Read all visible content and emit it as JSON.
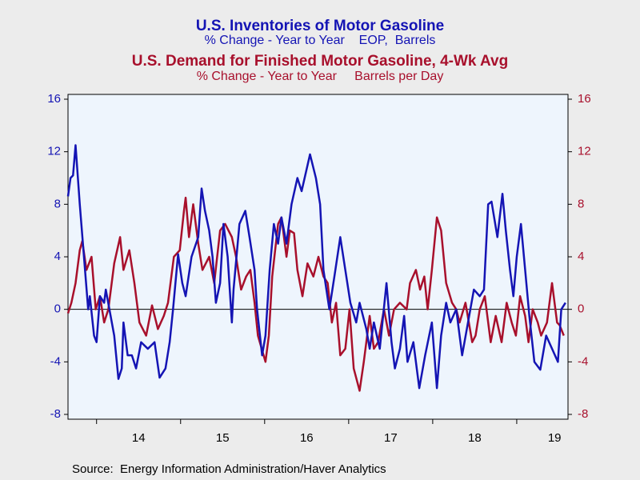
{
  "chart_data": {
    "type": "line",
    "source": "Source:  Energy Information Administration/Haver Analytics",
    "xlim": [
      2013.66,
      2019.61
    ],
    "xticks": [
      {
        "value": 2014.5,
        "label": "14"
      },
      {
        "value": 2015.5,
        "label": "15"
      },
      {
        "value": 2016.5,
        "label": "16"
      },
      {
        "value": 2017.5,
        "label": "17"
      },
      {
        "value": 2018.5,
        "label": "18"
      },
      {
        "value": 2019.45,
        "label": "19"
      }
    ],
    "ylim": [
      -8,
      16
    ],
    "yticks": [
      -8,
      -4,
      0,
      4,
      8,
      12,
      16
    ],
    "y2lim": [
      -8,
      16
    ],
    "y2ticks": [
      -8,
      -4,
      0,
      4,
      8,
      12,
      16
    ],
    "series": [
      {
        "name": "U.S. Inventories of Motor Gasoline",
        "subtitle": "% Change - Year to Year    EOP,  Barrels",
        "color": "#1414b4",
        "x": [
          2013.66,
          2013.69,
          2013.72,
          2013.75,
          2013.8,
          2013.85,
          2013.9,
          2013.92,
          2013.97,
          2014.0,
          2014.04,
          2014.09,
          2014.11,
          2014.21,
          2014.26,
          2014.3,
          2014.32,
          2014.37,
          2014.42,
          2014.47,
          2014.53,
          2014.61,
          2014.69,
          2014.75,
          2014.82,
          2014.87,
          2014.91,
          2014.97,
          2015.02,
          2015.06,
          2015.13,
          2015.21,
          2015.25,
          2015.29,
          2015.34,
          2015.38,
          2015.42,
          2015.47,
          2015.51,
          2015.56,
          2015.61,
          2015.63,
          2015.7,
          2015.77,
          2015.82,
          2015.88,
          2015.91,
          2015.97,
          2016.01,
          2016.06,
          2016.11,
          2016.16,
          2016.2,
          2016.26,
          2016.32,
          2016.39,
          2016.44,
          2016.54,
          2016.61,
          2016.66,
          2016.7,
          2016.77,
          2016.83,
          2016.9,
          2016.96,
          2017.02,
          2017.09,
          2017.13,
          2017.21,
          2017.25,
          2017.3,
          2017.37,
          2017.45,
          2017.51,
          2017.55,
          2017.61,
          2017.66,
          2017.7,
          2017.77,
          2017.84,
          2017.91,
          2017.99,
          2018.05,
          2018.1,
          2018.16,
          2018.21,
          2018.28,
          2018.35,
          2018.42,
          2018.49,
          2018.56,
          2018.61,
          2018.66,
          2018.7,
          2018.77,
          2018.83,
          2018.87,
          2018.92,
          2018.96,
          2019.0,
          2019.05,
          2019.1,
          2019.15,
          2019.21,
          2019.28,
          2019.35,
          2019.42,
          2019.49,
          2019.53,
          2019.58
        ],
        "values": [
          8.6,
          10,
          10.2,
          12.5,
          8,
          4,
          0,
          1,
          -2,
          -2.5,
          1,
          0.5,
          1.5,
          -2,
          -5.3,
          -4.5,
          -1,
          -3.5,
          -3.5,
          -4.5,
          -2.5,
          -3,
          -2.5,
          -5.2,
          -4.5,
          -2.5,
          0,
          4.2,
          2,
          1,
          4,
          5.5,
          9.2,
          7.5,
          6,
          4,
          0.5,
          2,
          6.5,
          4,
          -1,
          1.5,
          6.5,
          7.5,
          5.5,
          3,
          0,
          -3.5,
          -2,
          3,
          6.5,
          5,
          7,
          5,
          8,
          10,
          9,
          11.8,
          10,
          8,
          3,
          0,
          2.5,
          5.5,
          3,
          0.5,
          -1,
          0.5,
          -1.5,
          -3,
          -1,
          -3,
          2,
          -2.5,
          -4.5,
          -3,
          -0.5,
          -4,
          -2.5,
          -6,
          -3.5,
          -1,
          -6,
          -2,
          0.5,
          -1,
          0,
          -3.5,
          -1,
          1.5,
          1,
          1.5,
          8,
          8.2,
          5.5,
          8.8,
          6,
          3,
          1,
          4,
          6.5,
          3,
          -0.5,
          -4,
          -4.6,
          -2,
          -3,
          -4,
          0,
          0.5
        ]
      },
      {
        "name": "U.S. Demand for Finished Motor Gasoline, 4-Wk Avg",
        "subtitle": "% Change - Year to Year     Barrels per Day",
        "color": "#a8102c",
        "axis": "y2",
        "x": [
          2013.66,
          2013.7,
          2013.75,
          2013.8,
          2013.83,
          2013.88,
          2013.94,
          2013.99,
          2014.04,
          2014.09,
          2014.14,
          2014.21,
          2014.28,
          2014.32,
          2014.39,
          2014.45,
          2014.51,
          2014.59,
          2014.66,
          2014.73,
          2014.8,
          2014.85,
          2014.92,
          2014.99,
          2015.04,
          2015.06,
          2015.1,
          2015.15,
          2015.21,
          2015.26,
          2015.34,
          2015.4,
          2015.47,
          2015.53,
          2015.61,
          2015.66,
          2015.72,
          2015.78,
          2015.83,
          2015.88,
          2015.92,
          2016.01,
          2016.05,
          2016.09,
          2016.16,
          2016.2,
          2016.26,
          2016.3,
          2016.35,
          2016.39,
          2016.45,
          2016.51,
          2016.58,
          2016.64,
          2016.7,
          2016.75,
          2016.8,
          2016.85,
          2016.9,
          2016.96,
          2017.01,
          2017.06,
          2017.13,
          2017.18,
          2017.25,
          2017.3,
          2017.35,
          2017.42,
          2017.48,
          2017.54,
          2017.61,
          2017.69,
          2017.73,
          2017.8,
          2017.85,
          2017.9,
          2017.94,
          2017.99,
          2018.05,
          2018.1,
          2018.16,
          2018.23,
          2018.28,
          2018.32,
          2018.39,
          2018.47,
          2018.51,
          2018.56,
          2018.62,
          2018.69,
          2018.75,
          2018.82,
          2018.88,
          2018.94,
          2018.99,
          2019.04,
          2019.1,
          2019.14,
          2019.19,
          2019.25,
          2019.29,
          2019.36,
          2019.42,
          2019.48,
          2019.51,
          2019.56
        ],
        "values": [
          -0.3,
          0.5,
          2,
          4.5,
          5.2,
          3,
          4,
          0,
          1,
          -1,
          0,
          3.5,
          5.5,
          3,
          4.5,
          2,
          -1,
          -2,
          0.3,
          -1.5,
          -0.5,
          0.5,
          4,
          4.5,
          7.5,
          8.5,
          5.5,
          8,
          5,
          3,
          4,
          2,
          6,
          6.5,
          5.5,
          4,
          1.5,
          2.5,
          3,
          0.5,
          -2,
          -4,
          -2,
          2.5,
          6.5,
          7,
          4,
          6,
          5.8,
          3,
          1,
          3.5,
          2.5,
          4,
          2.5,
          2,
          -1,
          0.5,
          -3.5,
          -3,
          0,
          -4.5,
          -6.2,
          -4,
          -0.5,
          -3,
          -2.5,
          0,
          -2,
          0,
          0.5,
          0,
          2,
          3,
          1.5,
          2.5,
          0,
          3,
          7,
          6,
          2,
          0.5,
          0,
          -1,
          0.5,
          -2.5,
          -2,
          0,
          1,
          -2.5,
          -0.5,
          -2.5,
          0.5,
          -1,
          -2,
          1,
          -0.5,
          -2.5,
          0,
          -1,
          -2,
          -1,
          2,
          -1,
          -1.2,
          -2
        ]
      }
    ]
  }
}
